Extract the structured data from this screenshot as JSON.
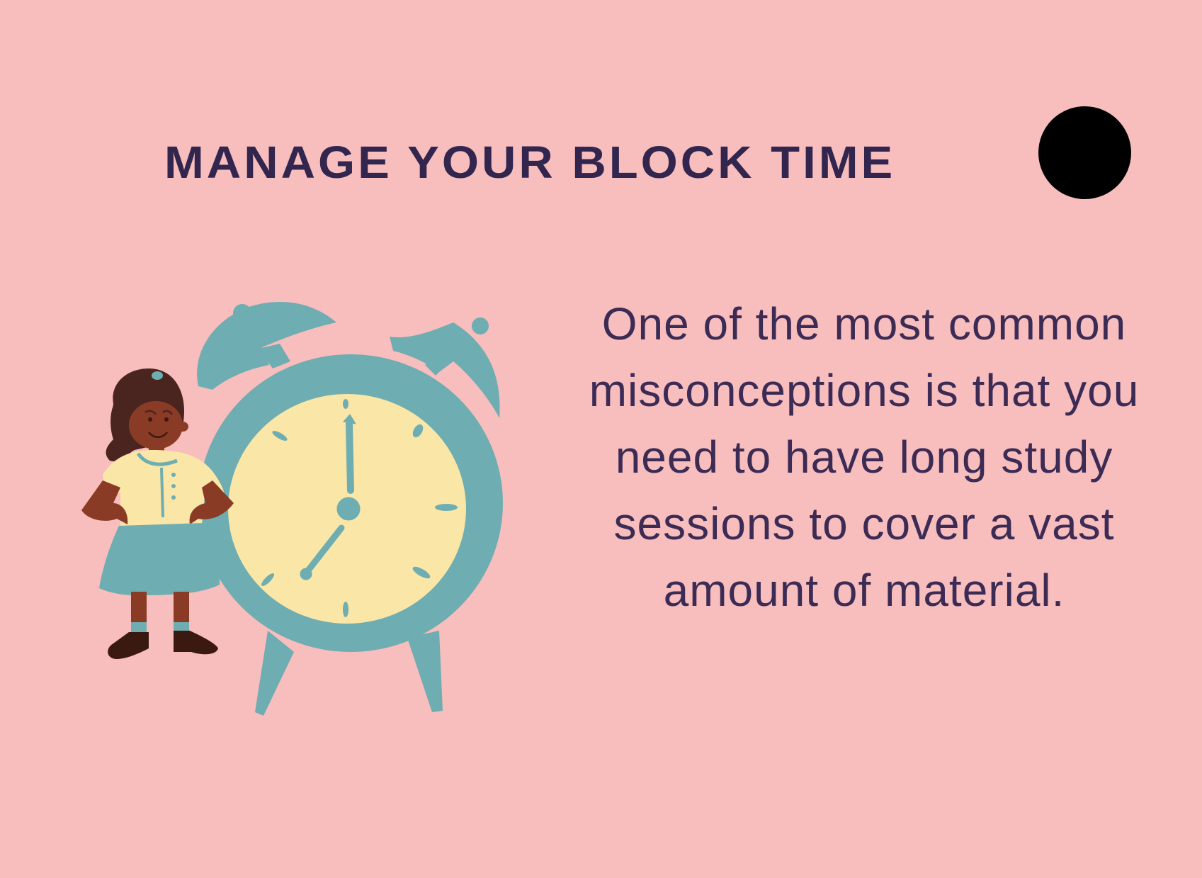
{
  "slide": {
    "title": "MANAGE YOUR BLOCK TIME",
    "body": "One of the most common misconceptions is that you need to have long study sessions to cover a vast amount of material."
  },
  "colors": {
    "background": "#f8bdbd",
    "title": "#32264f",
    "body_text": "#3b2b55",
    "clock_body": "#6eadb1",
    "clock_face": "#fae6a6",
    "dot": "#000000"
  },
  "icons": [
    "alarm-clock-icon",
    "girl-illustration",
    "black-dot"
  ]
}
